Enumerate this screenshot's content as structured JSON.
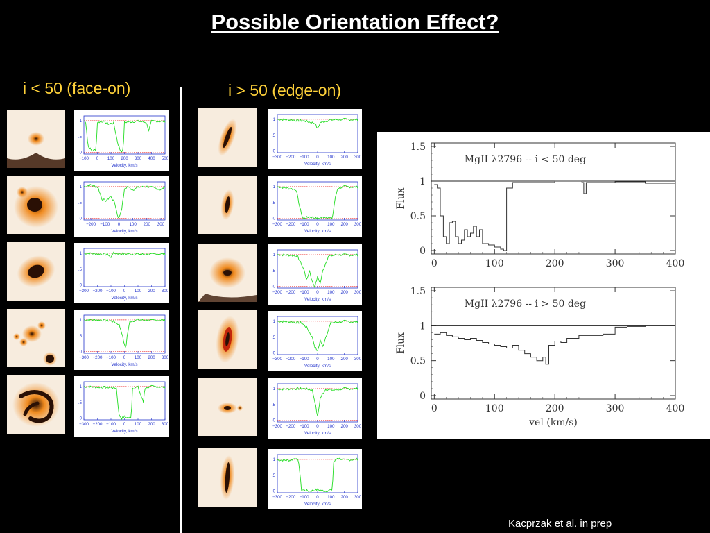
{
  "title": "Possible Orientation Effect?",
  "left_heading": "i < 50 (face-on)",
  "right_heading": "i > 50 (edge-on)",
  "credit": "Kacprzak et al.  in prep",
  "colors": {
    "background": "#000000",
    "heading": "#ffd23a",
    "spectrum": "#22dd22",
    "axis_text": "#2233cc",
    "galaxy_dark": "#2a1005",
    "galaxy_glow": "#f08a1e"
  },
  "small_panels": {
    "xlabel": "Velocity, km/s",
    "left": [
      {
        "name": "face-on-1",
        "galaxy": "faint-core",
        "xticks": [
          "−100",
          "0",
          "100",
          "200",
          "300",
          "400",
          "500"
        ],
        "xmin": -100,
        "xmax": 500,
        "yticks": [
          "1",
          ".5",
          "0"
        ],
        "flux": [
          [
            -100,
            1.0
          ],
          [
            -85,
            0.95
          ],
          [
            -70,
            0.2
          ],
          [
            -40,
            0.05
          ],
          [
            -10,
            0.1
          ],
          [
            0,
            0.95
          ],
          [
            40,
            0.98
          ],
          [
            80,
            0.9
          ],
          [
            120,
            0.92
          ],
          [
            150,
            0.3
          ],
          [
            170,
            0.05
          ],
          [
            190,
            0.05
          ],
          [
            200,
            0.95
          ],
          [
            300,
            0.98
          ],
          [
            360,
            0.95
          ],
          [
            380,
            0.7
          ],
          [
            400,
            0.98
          ],
          [
            500,
            0.98
          ]
        ]
      },
      {
        "name": "face-on-2",
        "galaxy": "bright-ring",
        "xticks": [
          "−200",
          "−100",
          "0",
          "100",
          "200",
          "300"
        ],
        "xmin": -250,
        "xmax": 330,
        "yticks": [
          "1",
          ".5",
          "0"
        ],
        "flux": [
          [
            -250,
            1.0
          ],
          [
            -200,
            1.05
          ],
          [
            -150,
            0.98
          ],
          [
            -120,
            0.6
          ],
          [
            -90,
            0.55
          ],
          [
            -60,
            0.7
          ],
          [
            -30,
            0.5
          ],
          [
            -10,
            0.1
          ],
          [
            0,
            0.0
          ],
          [
            20,
            0.3
          ],
          [
            40,
            0.9
          ],
          [
            60,
            1.0
          ],
          [
            100,
            0.9
          ],
          [
            140,
            0.98
          ],
          [
            200,
            1.0
          ],
          [
            260,
            0.95
          ],
          [
            300,
            0.9
          ],
          [
            330,
            1.0
          ]
        ]
      },
      {
        "name": "face-on-3",
        "galaxy": "compact-bright",
        "xticks": [
          "−300",
          "−200",
          "−100",
          "0",
          "100",
          "200",
          "300"
        ],
        "xmin": -300,
        "xmax": 300,
        "yticks": [
          "1",
          ".5",
          "0"
        ],
        "flux": [
          [
            -300,
            1.0
          ],
          [
            -200,
            0.98
          ],
          [
            -120,
            0.96
          ],
          [
            -100,
            0.85
          ],
          [
            -90,
            1.0
          ],
          [
            0,
            0.98
          ],
          [
            100,
            0.97
          ],
          [
            200,
            0.96
          ],
          [
            300,
            0.99
          ]
        ]
      },
      {
        "name": "face-on-4",
        "galaxy": "clumpy",
        "xticks": [
          "−300",
          "−200",
          "−100",
          "0",
          "100",
          "200",
          "300"
        ],
        "xmin": -300,
        "xmax": 300,
        "yticks": [
          "1",
          ".5",
          "0"
        ],
        "flux": [
          [
            -300,
            1.0
          ],
          [
            -200,
            1.0
          ],
          [
            -120,
            0.98
          ],
          [
            -80,
            0.95
          ],
          [
            -40,
            0.85
          ],
          [
            -20,
            0.6
          ],
          [
            0,
            0.2
          ],
          [
            10,
            0.1
          ],
          [
            20,
            0.5
          ],
          [
            40,
            0.95
          ],
          [
            100,
            1.0
          ],
          [
            200,
            0.98
          ],
          [
            300,
            1.0
          ]
        ]
      },
      {
        "name": "face-on-5",
        "galaxy": "spiral-arms",
        "xticks": [
          "−300",
          "−200",
          "−100",
          "0",
          "100",
          "200",
          "300"
        ],
        "xmin": -300,
        "xmax": 300,
        "yticks": [
          "1",
          ".5",
          "0"
        ],
        "flux": [
          [
            -300,
            1.0
          ],
          [
            -200,
            0.98
          ],
          [
            -100,
            0.97
          ],
          [
            -60,
            0.95
          ],
          [
            -40,
            0.1
          ],
          [
            -20,
            0.0
          ],
          [
            0,
            0.05
          ],
          [
            30,
            0.0
          ],
          [
            50,
            0.05
          ],
          [
            60,
            0.95
          ],
          [
            100,
            0.98
          ],
          [
            140,
            0.5
          ],
          [
            150,
            0.95
          ],
          [
            200,
            1.0
          ],
          [
            300,
            0.98
          ]
        ]
      }
    ],
    "right": [
      {
        "name": "edge-on-1",
        "galaxy": "thin-edge",
        "xticks": [
          "−300",
          "−200",
          "−100",
          "0",
          "100",
          "200",
          "300"
        ],
        "xmin": -300,
        "xmax": 300,
        "yticks": [
          "1",
          ".5",
          "0"
        ],
        "flux": [
          [
            -300,
            1.0
          ],
          [
            -200,
            0.98
          ],
          [
            -100,
            0.95
          ],
          [
            -50,
            0.9
          ],
          [
            -20,
            0.88
          ],
          [
            0,
            0.7
          ],
          [
            20,
            0.9
          ],
          [
            100,
            0.98
          ],
          [
            200,
            1.0
          ],
          [
            300,
            0.98
          ]
        ]
      },
      {
        "name": "edge-on-2",
        "galaxy": "thin-edge-short",
        "xticks": [
          "−300",
          "−200",
          "−100",
          "0",
          "100",
          "200",
          "300"
        ],
        "xmin": -300,
        "xmax": 300,
        "yticks": [
          "1",
          ".5",
          "0"
        ],
        "flux": [
          [
            -300,
            1.0
          ],
          [
            -220,
            0.95
          ],
          [
            -160,
            0.9
          ],
          [
            -130,
            0.3
          ],
          [
            -110,
            0.0
          ],
          [
            -60,
            0.05
          ],
          [
            0,
            0.0
          ],
          [
            60,
            0.05
          ],
          [
            110,
            0.0
          ],
          [
            130,
            0.6
          ],
          [
            150,
            0.95
          ],
          [
            200,
            1.0
          ],
          [
            300,
            0.98
          ]
        ]
      },
      {
        "name": "edge-on-3",
        "galaxy": "edge-with-halo",
        "xticks": [
          "−300",
          "−200",
          "−100",
          "0",
          "100",
          "200",
          "300"
        ],
        "xmin": -300,
        "xmax": 300,
        "yticks": [
          "1",
          ".5",
          "0"
        ],
        "flux": [
          [
            -300,
            1.0
          ],
          [
            -200,
            0.98
          ],
          [
            -150,
            0.95
          ],
          [
            -120,
            0.7
          ],
          [
            -100,
            0.5
          ],
          [
            -80,
            0.2
          ],
          [
            -60,
            0.5
          ],
          [
            -40,
            0.15
          ],
          [
            -20,
            0.0
          ],
          [
            0,
            0.3
          ],
          [
            20,
            0.1
          ],
          [
            40,
            0.5
          ],
          [
            80,
            0.95
          ],
          [
            150,
            1.0
          ],
          [
            300,
            0.98
          ]
        ]
      },
      {
        "name": "edge-on-4",
        "galaxy": "edge-bright-core",
        "xticks": [
          "−300",
          "−200",
          "−100",
          "0",
          "100",
          "200",
          "300"
        ],
        "xmin": -300,
        "xmax": 300,
        "yticks": [
          "1",
          ".5",
          "0"
        ],
        "flux": [
          [
            -300,
            1.0
          ],
          [
            -200,
            0.98
          ],
          [
            -120,
            0.95
          ],
          [
            -80,
            0.8
          ],
          [
            -40,
            0.5
          ],
          [
            -20,
            0.2
          ],
          [
            0,
            0.05
          ],
          [
            20,
            0.4
          ],
          [
            40,
            0.2
          ],
          [
            60,
            0.5
          ],
          [
            100,
            0.95
          ],
          [
            200,
            1.0
          ],
          [
            300,
            0.97
          ]
        ]
      },
      {
        "name": "edge-on-5",
        "galaxy": "compact-edge",
        "xticks": [
          "−300",
          "−200",
          "−100",
          "0",
          "100",
          "200",
          "300"
        ],
        "xmin": -300,
        "xmax": 300,
        "yticks": [
          "1",
          ".5",
          "0"
        ],
        "flux": [
          [
            -300,
            0.98
          ],
          [
            -200,
            0.99
          ],
          [
            -100,
            1.0
          ],
          [
            -40,
            0.95
          ],
          [
            -20,
            0.6
          ],
          [
            0,
            0.1
          ],
          [
            20,
            0.7
          ],
          [
            60,
            0.98
          ],
          [
            120,
            0.95
          ],
          [
            200,
            1.0
          ],
          [
            300,
            0.99
          ]
        ]
      },
      {
        "name": "edge-on-6",
        "galaxy": "long-edge",
        "xticks": [
          "−300",
          "−200",
          "−100",
          "0",
          "100",
          "200",
          "300"
        ],
        "xmin": -300,
        "xmax": 300,
        "yticks": [
          "1",
          ".5",
          "0"
        ],
        "flux": [
          [
            -300,
            0.98
          ],
          [
            -200,
            0.97
          ],
          [
            -160,
            1.05
          ],
          [
            -140,
            0.9
          ],
          [
            -120,
            0.05
          ],
          [
            -60,
            0.0
          ],
          [
            0,
            0.05
          ],
          [
            60,
            0.0
          ],
          [
            110,
            0.05
          ],
          [
            120,
            0.9
          ],
          [
            150,
            1.05
          ],
          [
            200,
            0.98
          ],
          [
            300,
            1.0
          ]
        ]
      }
    ]
  },
  "chart_data": [
    {
      "type": "line",
      "title": "MgII λ2796 -- i < 50 deg",
      "xlabel": "",
      "ylabel": "Flux",
      "xlim": [
        -5,
        400
      ],
      "ylim": [
        -0.05,
        1.55
      ],
      "xticks": [
        "0",
        "100",
        "200",
        "300",
        "400"
      ],
      "yticks": [
        "0",
        "0.5",
        "1",
        "1.5"
      ],
      "series": [
        {
          "values": [
            [
              0,
              0.95
            ],
            [
              5,
              0.9
            ],
            [
              10,
              0.5
            ],
            [
              15,
              0.2
            ],
            [
              20,
              0.1
            ],
            [
              25,
              0.4
            ],
            [
              30,
              0.42
            ],
            [
              35,
              0.2
            ],
            [
              40,
              0.1
            ],
            [
              45,
              0.15
            ],
            [
              50,
              0.3
            ],
            [
              55,
              0.2
            ],
            [
              60,
              0.25
            ],
            [
              65,
              0.35
            ],
            [
              70,
              0.2
            ],
            [
              75,
              0.3
            ],
            [
              80,
              0.1
            ],
            [
              90,
              0.08
            ],
            [
              100,
              0.05
            ],
            [
              110,
              0.02
            ],
            [
              115,
              0.0
            ],
            [
              120,
              0.9
            ],
            [
              130,
              0.98
            ],
            [
              150,
              0.98
            ],
            [
              200,
              1.0
            ],
            [
              245,
              0.98
            ],
            [
              248,
              0.82
            ],
            [
              252,
              0.98
            ],
            [
              300,
              0.99
            ],
            [
              350,
              0.97
            ],
            [
              400,
              0.98
            ]
          ]
        }
      ]
    },
    {
      "type": "line",
      "title": "MgII λ2796 -- i > 50 deg",
      "xlabel": "vel (km/s)",
      "ylabel": "Flux",
      "xlim": [
        -5,
        400
      ],
      "ylim": [
        -0.05,
        1.55
      ],
      "xticks": [
        "0",
        "100",
        "200",
        "300",
        "400"
      ],
      "yticks": [
        "0",
        "0.5",
        "1",
        "1.5"
      ],
      "series": [
        {
          "values": [
            [
              0,
              0.88
            ],
            [
              10,
              0.9
            ],
            [
              20,
              0.86
            ],
            [
              30,
              0.84
            ],
            [
              40,
              0.82
            ],
            [
              50,
              0.8
            ],
            [
              60,
              0.82
            ],
            [
              70,
              0.79
            ],
            [
              80,
              0.76
            ],
            [
              90,
              0.74
            ],
            [
              100,
              0.72
            ],
            [
              110,
              0.7
            ],
            [
              120,
              0.68
            ],
            [
              130,
              0.72
            ],
            [
              140,
              0.65
            ],
            [
              150,
              0.6
            ],
            [
              160,
              0.55
            ],
            [
              170,
              0.5
            ],
            [
              180,
              0.55
            ],
            [
              185,
              0.45
            ],
            [
              190,
              0.72
            ],
            [
              200,
              0.78
            ],
            [
              210,
              0.76
            ],
            [
              220,
              0.82
            ],
            [
              240,
              0.86
            ],
            [
              260,
              0.86
            ],
            [
              280,
              0.88
            ],
            [
              295,
              0.88
            ],
            [
              300,
              0.98
            ],
            [
              320,
              0.99
            ],
            [
              350,
              1.0
            ],
            [
              400,
              1.0
            ]
          ]
        }
      ]
    }
  ]
}
